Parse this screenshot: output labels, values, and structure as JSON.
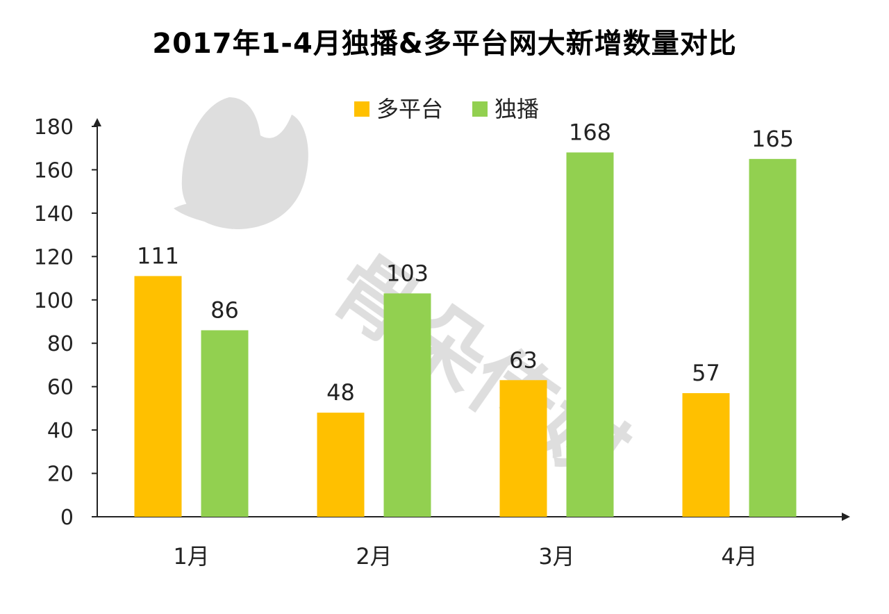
{
  "chart_data": {
    "type": "bar",
    "title": "2017年1-4月独播&多平台网大新增数量对比",
    "categories": [
      "1月",
      "2月",
      "3月",
      "4月"
    ],
    "series": [
      {
        "name": "多平台",
        "color": "#FFC000",
        "values": [
          111,
          48,
          63,
          57
        ]
      },
      {
        "name": "独播",
        "color": "#92D050",
        "values": [
          86,
          103,
          168,
          165
        ]
      }
    ],
    "ylim": [
      0,
      180
    ],
    "yticks": [
      0,
      20,
      40,
      60,
      80,
      100,
      120,
      140,
      160,
      180
    ],
    "xlabel": "",
    "ylabel": "",
    "grid": false,
    "legend_position": "top-center",
    "watermark": "骨朵传媒"
  }
}
